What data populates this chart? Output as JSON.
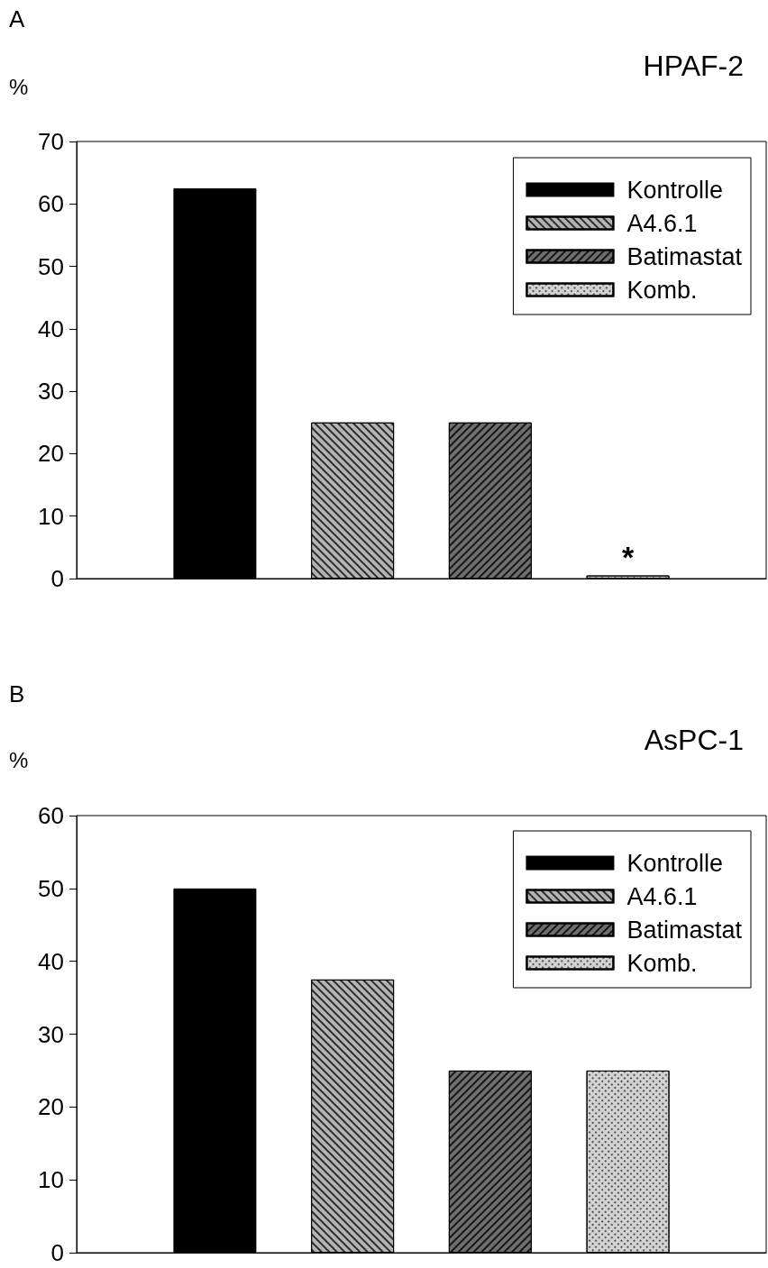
{
  "chart_data": [
    {
      "type": "bar",
      "title": "HPAF-2",
      "ylabel": "%",
      "annotations": [
        "A",
        {
          "text": "*",
          "y": 0.5
        }
      ],
      "categories": [
        null
      ],
      "series": [
        {
          "name": "Kontrolle",
          "color": "#000000",
          "values": [
            62.5
          ]
        },
        {
          "name": "A4.6.1",
          "color": "#b4b4b4",
          "values": [
            25
          ]
        },
        {
          "name": "Batimastat",
          "color": "#6e6e6e",
          "values": [
            25
          ]
        },
        {
          "name": "Komb.",
          "color": "#d2d2d2",
          "values": [
            0.5
          ]
        }
      ],
      "ylim": [
        0,
        70
      ],
      "yticks": [
        0,
        10,
        20,
        30,
        40,
        50,
        60,
        70
      ],
      "grid": false,
      "legend": "top right"
    },
    {
      "type": "bar",
      "title": "AsPC-1",
      "ylabel": "%",
      "annotations": [
        "B"
      ],
      "categories": [
        null
      ],
      "series": [
        {
          "name": "Kontrolle",
          "color": "#000000",
          "values": [
            50
          ]
        },
        {
          "name": "A4.6.1",
          "color": "#b4b4b4",
          "values": [
            37.5
          ]
        },
        {
          "name": "Batimastat",
          "color": "#6e6e6e",
          "values": [
            25
          ]
        },
        {
          "name": "Komb.",
          "color": "#d2d2d2",
          "values": [
            25
          ]
        }
      ],
      "ylim": [
        0,
        60
      ],
      "yticks": [
        0,
        10,
        20,
        30,
        40,
        50,
        60
      ],
      "grid": false,
      "legend": "top right"
    }
  ]
}
